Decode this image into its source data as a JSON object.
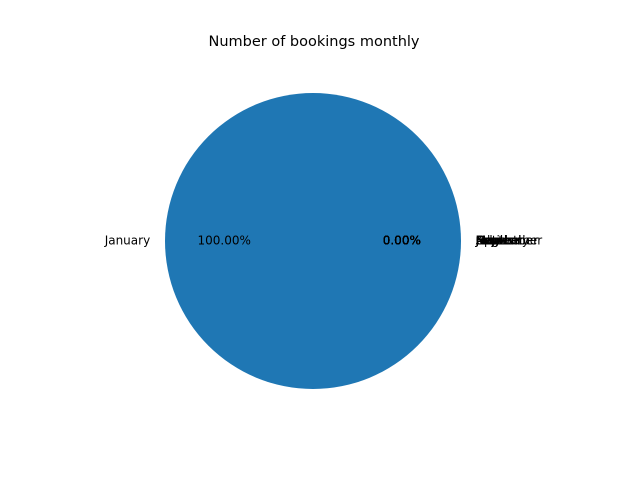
{
  "chart_data": {
    "type": "pie",
    "title": "Number of bookings monthly",
    "categories": [
      "January",
      "February",
      "March",
      "April",
      "May",
      "June",
      "July",
      "August",
      "September",
      "October",
      "November",
      "December"
    ],
    "values": [
      100,
      0,
      0,
      0,
      0,
      0,
      0,
      0,
      0,
      0,
      0,
      0
    ],
    "percent_labels": [
      "100.00%",
      "0.00%",
      "0.00%",
      "0.00%",
      "0.00%",
      "0.00%",
      "0.00%",
      "0.00%",
      "0.00%",
      "0.00%",
      "0.00%",
      "0.00%"
    ],
    "colors": [
      "#1f77b4",
      "#ff7f0e",
      "#2ca02c",
      "#d62728",
      "#9467bd",
      "#8c564b",
      "#e377c2",
      "#7f7f7f",
      "#bcbd22",
      "#17becf",
      "#1f77b4",
      "#ff7f0e"
    ],
    "legend": "none"
  }
}
